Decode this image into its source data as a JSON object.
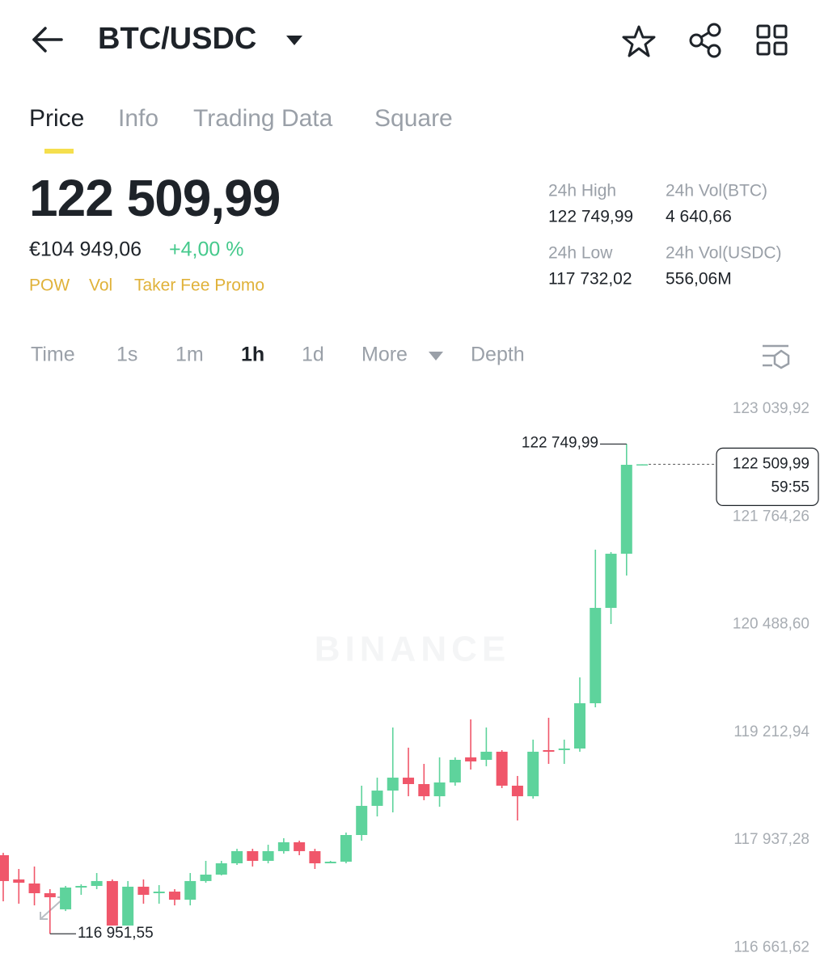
{
  "header": {
    "pair": "BTC/USDC"
  },
  "tabs": [
    "Price",
    "Info",
    "Trading Data",
    "Square"
  ],
  "price": {
    "last": "122 509,99",
    "fiat": "€104 949,06",
    "change": "+4,00 %",
    "tags": [
      "POW",
      "Vol",
      "Taker Fee Promo"
    ]
  },
  "stats": [
    {
      "label": "24h High",
      "value": "122 749,99"
    },
    {
      "label": "24h Vol(BTC)",
      "value": "4 640,66"
    },
    {
      "label": "24h Low",
      "value": "117 732,02"
    },
    {
      "label": "24h Vol(USDC)",
      "value": "556,06M"
    }
  ],
  "intervals": [
    "Time",
    "1s",
    "1m",
    "1h",
    "1d",
    "More",
    "Depth"
  ],
  "chart_data": {
    "type": "candlestick",
    "watermark": "BINANCE",
    "up_color": "#5ed39c",
    "down_color": "#f0566a",
    "ylim": [
      116661.62,
      123039.92
    ],
    "yticks": [
      {
        "value": 123039.92,
        "label": "123 039,92"
      },
      {
        "value": 121764.26,
        "label": "121 764,26"
      },
      {
        "value": 120488.6,
        "label": "120 488,60"
      },
      {
        "value": 119212.94,
        "label": "119 212,94"
      },
      {
        "value": 117937.28,
        "label": "117 937,28"
      },
      {
        "value": 116661.62,
        "label": "116 661,62"
      }
    ],
    "open": [
      117882,
      117595,
      117547,
      117432,
      117241,
      117499,
      117518,
      117576,
      117049,
      117509,
      117432,
      117451,
      117355,
      117576,
      117652,
      117786,
      117930,
      117815,
      117930,
      118035,
      117930,
      117786,
      117805,
      118121,
      118466,
      118647,
      118800,
      118724,
      118580,
      118743,
      119040,
      119011,
      119107,
      118705,
      118580,
      119126,
      119126,
      119145,
      119681,
      120810,
      121451,
      122504
    ],
    "high": [
      117910,
      117719,
      117748,
      117480,
      117518,
      117537,
      117671,
      117595,
      117576,
      117595,
      117528,
      117480,
      117671,
      117815,
      117815,
      117958,
      117958,
      118006,
      118083,
      118054,
      117958,
      117815,
      118150,
      118705,
      118800,
      119394,
      119155,
      118963,
      119040,
      119040,
      119490,
      119394,
      119126,
      118820,
      119250,
      119509,
      119250,
      119987,
      121499,
      121471,
      122749.99,
      122509.99
    ],
    "low": [
      117336,
      117308,
      117288,
      116951.55,
      117221,
      117413,
      117480,
      117049,
      117049,
      117308,
      117308,
      117288,
      117288,
      117556,
      117643,
      117767,
      117748,
      117786,
      117901,
      117882,
      117719,
      117786,
      117786,
      118054,
      118341,
      118389,
      118580,
      118533,
      118456,
      118705,
      118896,
      118935,
      118676,
      118293,
      118552,
      118963,
      118963,
      119107,
      119633,
      120619,
      121193,
      122504
    ],
    "close": [
      117576,
      117556,
      117432,
      117384,
      117499,
      117518,
      117576,
      117049,
      117509,
      117413,
      117451,
      117355,
      117576,
      117652,
      117786,
      117930,
      117815,
      117930,
      118035,
      117930,
      117786,
      117805,
      118121,
      118466,
      118647,
      118800,
      118724,
      118580,
      118743,
      119011,
      118992,
      119107,
      118705,
      118580,
      119107,
      119107,
      119145,
      119681,
      120810,
      121451,
      122504,
      122509.99
    ],
    "high_marker": {
      "value": 122749.99,
      "label": "122 749,99"
    },
    "low_marker": {
      "value": 116951.55,
      "label": "116 951,55"
    },
    "last_price": {
      "value": 122509.99,
      "label": "122 509,99"
    },
    "countdown": "59:55"
  }
}
